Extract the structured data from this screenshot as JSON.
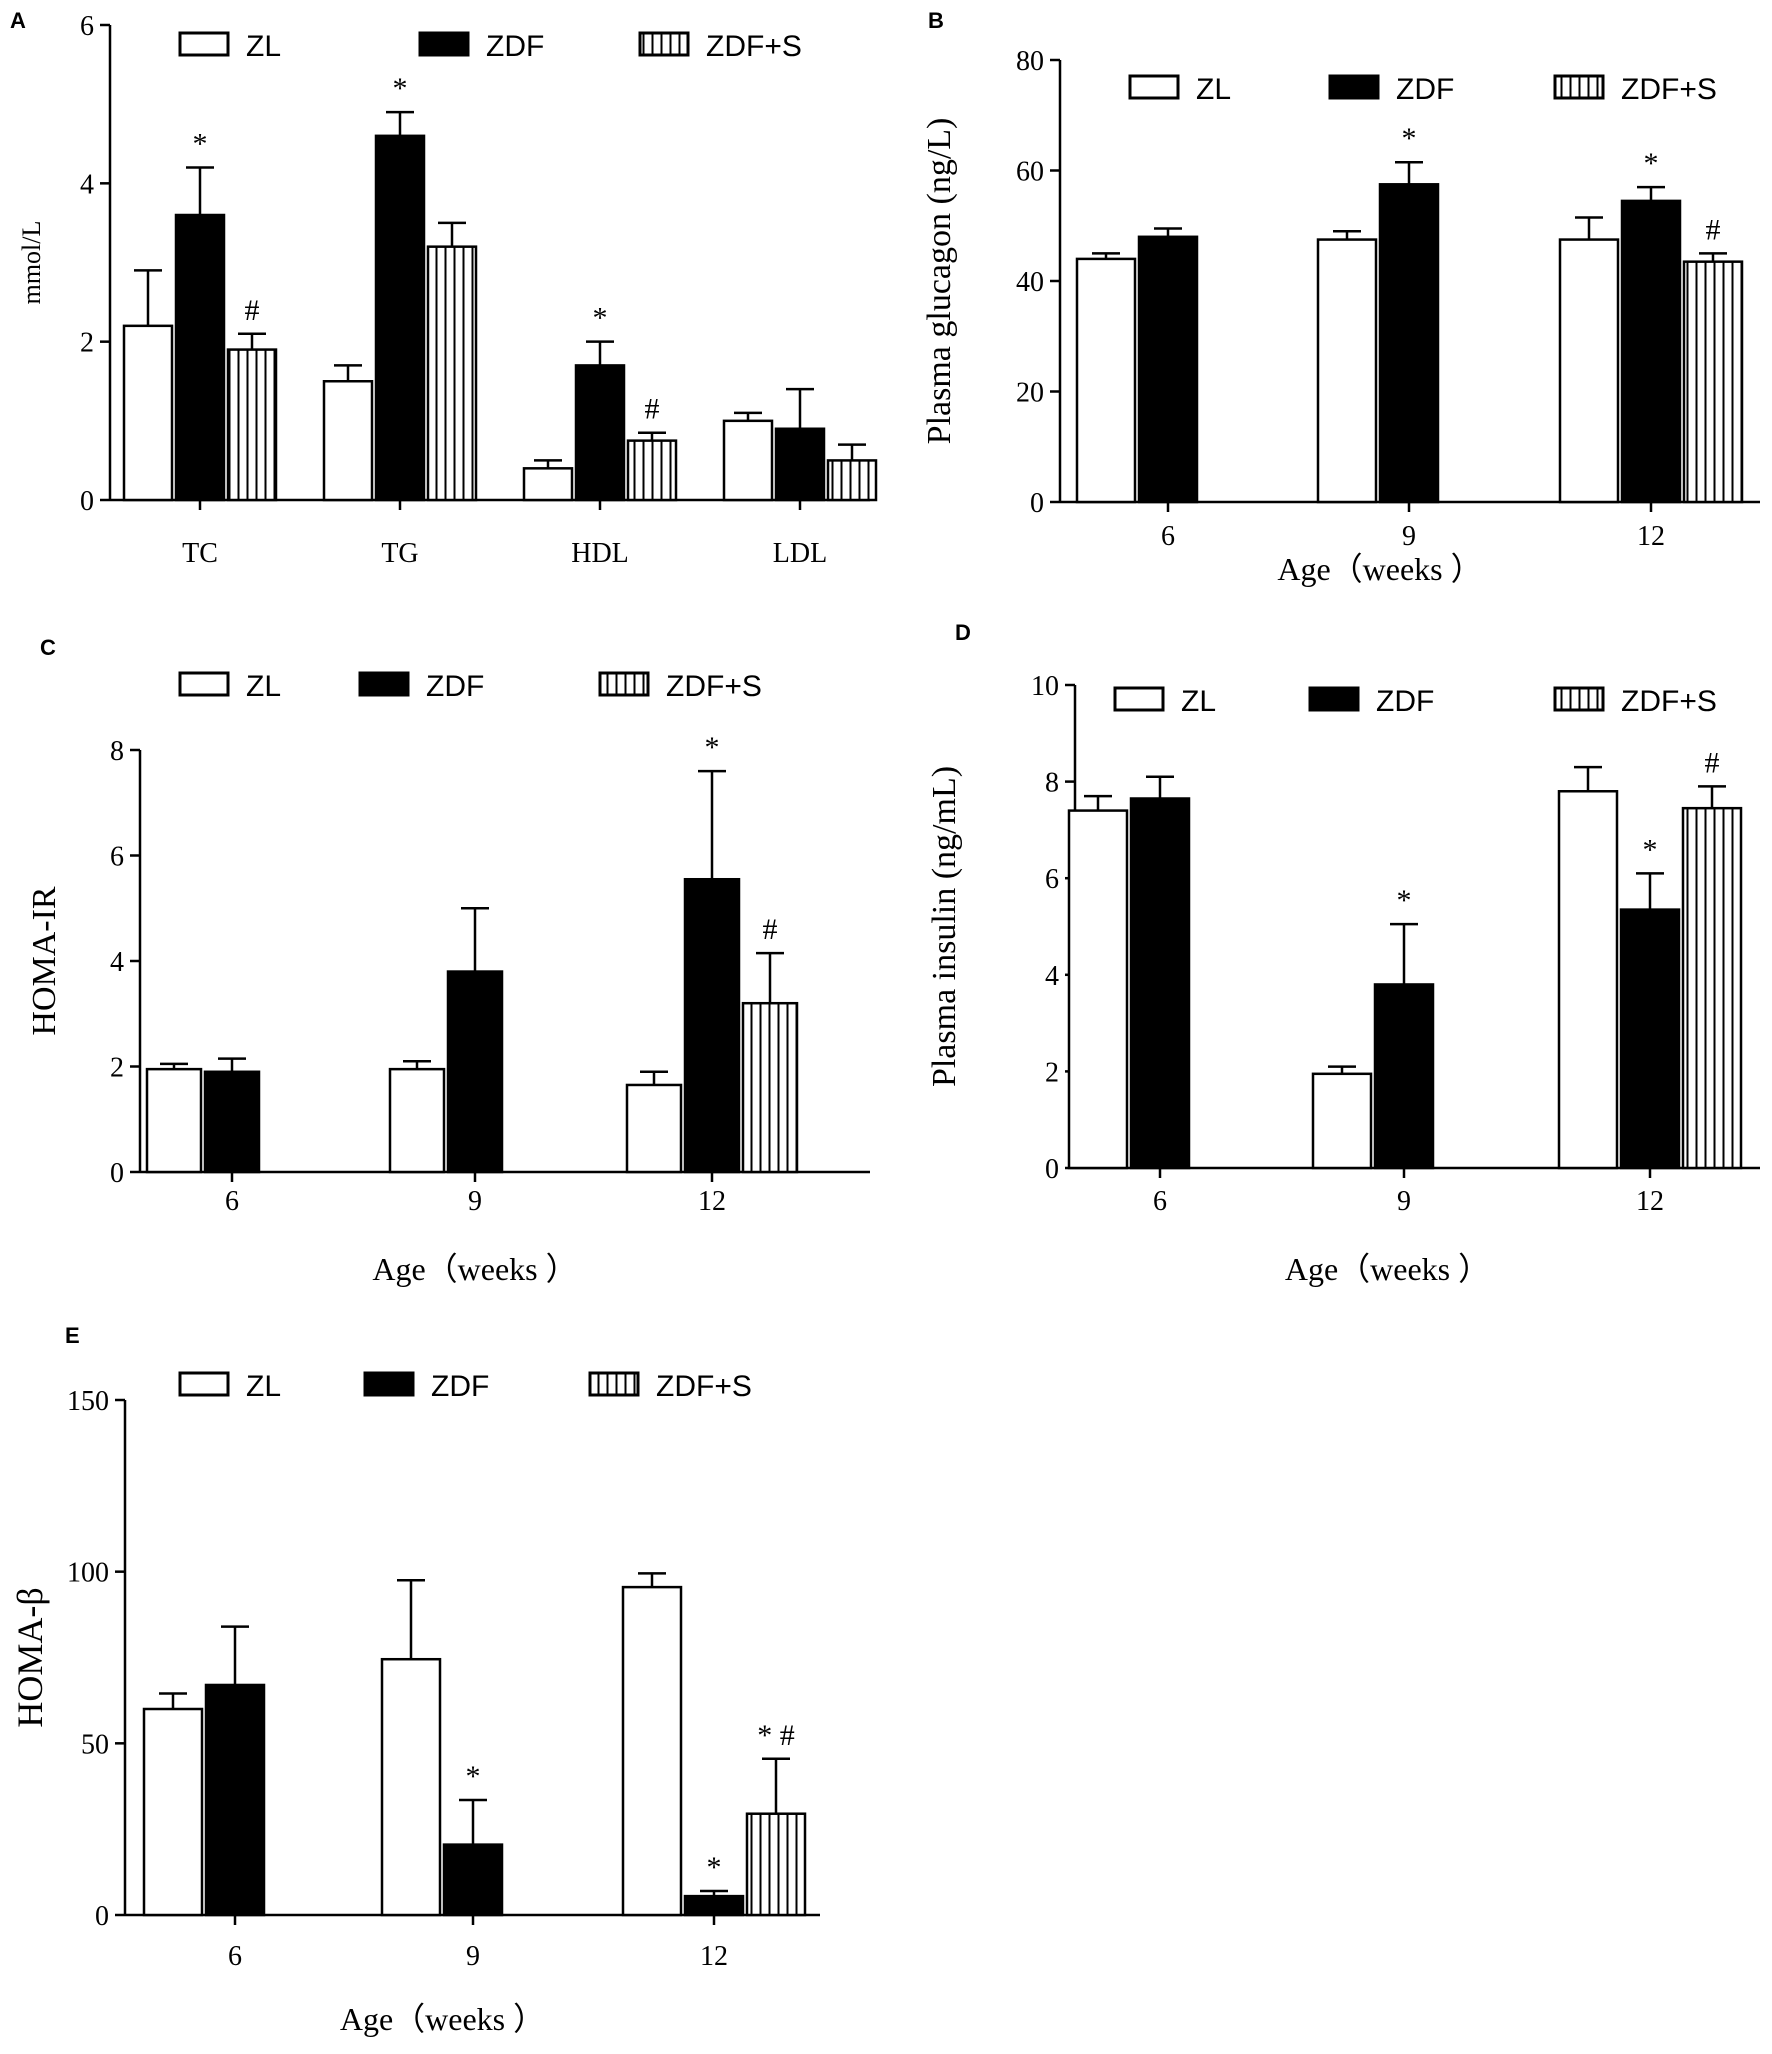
{
  "chart_data": [
    {
      "panel": "A",
      "type": "bar",
      "title": "",
      "xlabel": "",
      "ylabel": "mmol/L",
      "ylim": [
        0,
        6
      ],
      "yticks": [
        0,
        2,
        4,
        6
      ],
      "categories": [
        "TC",
        "TG",
        "HDL",
        "LDL"
      ],
      "legend": [
        "ZL",
        "ZDF",
        "ZDF+S"
      ],
      "series": [
        {
          "name": "ZL",
          "values": [
            2.2,
            1.5,
            0.4,
            1.0
          ],
          "errors": [
            0.7,
            0.2,
            0.1,
            0.1
          ]
        },
        {
          "name": "ZDF",
          "values": [
            3.6,
            4.6,
            1.7,
            0.9
          ],
          "errors": [
            0.6,
            0.3,
            0.3,
            0.5
          ]
        },
        {
          "name": "ZDF+S",
          "values": [
            1.9,
            3.2,
            0.75,
            0.5
          ],
          "errors": [
            0.2,
            0.3,
            0.1,
            0.2
          ]
        }
      ],
      "annotations": [
        {
          "category": 0,
          "series": 1,
          "text": "*"
        },
        {
          "category": 0,
          "series": 2,
          "text": "#"
        },
        {
          "category": 1,
          "series": 1,
          "text": "*"
        },
        {
          "category": 2,
          "series": 1,
          "text": "*"
        },
        {
          "category": 2,
          "series": 2,
          "text": "#"
        }
      ]
    },
    {
      "panel": "B",
      "type": "bar",
      "title": "",
      "xlabel": "Age（weeks ）",
      "ylabel": "Plasma glucagon (ng/L)",
      "ylim": [
        0,
        80
      ],
      "yticks": [
        0,
        20,
        40,
        60,
        80
      ],
      "categories": [
        "6",
        "9",
        "12"
      ],
      "legend": [
        "ZL",
        "ZDF",
        "ZDF+S"
      ],
      "series": [
        {
          "name": "ZL",
          "values": [
            44,
            47.5,
            47.5
          ],
          "errors": [
            1,
            1.5,
            4
          ]
        },
        {
          "name": "ZDF",
          "values": [
            48,
            57.5,
            54.5
          ],
          "errors": [
            1.5,
            4,
            2.5
          ]
        },
        {
          "name": "ZDF+S",
          "values": [
            null,
            null,
            43.5
          ],
          "errors": [
            null,
            null,
            1.5
          ]
        }
      ],
      "annotations": [
        {
          "category": 1,
          "series": 1,
          "text": "*"
        },
        {
          "category": 2,
          "series": 1,
          "text": "*"
        },
        {
          "category": 2,
          "series": 2,
          "text": "#"
        }
      ]
    },
    {
      "panel": "C",
      "type": "bar",
      "title": "",
      "xlabel": "Age（weeks ）",
      "ylabel": "HOMA-IR",
      "ylim": [
        0,
        8
      ],
      "yticks": [
        0,
        2,
        4,
        6,
        8
      ],
      "categories": [
        "6",
        "9",
        "12"
      ],
      "legend": [
        "ZL",
        "ZDF",
        "ZDF+S"
      ],
      "series": [
        {
          "name": "ZL",
          "values": [
            1.95,
            1.95,
            1.65
          ],
          "errors": [
            0.1,
            0.15,
            0.25
          ]
        },
        {
          "name": "ZDF",
          "values": [
            1.9,
            3.8,
            5.55
          ],
          "errors": [
            0.25,
            1.2,
            2.05
          ]
        },
        {
          "name": "ZDF+S",
          "values": [
            null,
            null,
            3.2
          ],
          "errors": [
            null,
            null,
            0.95
          ]
        }
      ],
      "annotations": [
        {
          "category": 2,
          "series": 1,
          "text": "*"
        },
        {
          "category": 2,
          "series": 2,
          "text": "#"
        }
      ]
    },
    {
      "panel": "D",
      "type": "bar",
      "title": "",
      "xlabel": "Age（weeks ）",
      "ylabel": "Plasma insulin (ng/mL)",
      "ylim": [
        0,
        10
      ],
      "yticks": [
        0,
        2,
        4,
        6,
        8,
        10
      ],
      "categories": [
        "6",
        "9",
        "12"
      ],
      "legend": [
        "ZL",
        "ZDF",
        "ZDF+S"
      ],
      "series": [
        {
          "name": "ZL",
          "values": [
            7.4,
            1.95,
            7.8
          ],
          "errors": [
            0.3,
            0.15,
            0.5
          ]
        },
        {
          "name": "ZDF",
          "values": [
            7.65,
            3.8,
            5.35
          ],
          "errors": [
            0.45,
            1.25,
            0.75
          ]
        },
        {
          "name": "ZDF+S",
          "values": [
            null,
            null,
            7.45
          ],
          "errors": [
            null,
            null,
            0.45
          ]
        }
      ],
      "annotations": [
        {
          "category": 1,
          "series": 1,
          "text": "*"
        },
        {
          "category": 2,
          "series": 1,
          "text": "*"
        },
        {
          "category": 2,
          "series": 2,
          "text": "#"
        }
      ]
    },
    {
      "panel": "E",
      "type": "bar",
      "title": "",
      "xlabel": "Age（weeks ）",
      "ylabel": "HOMA-β",
      "ylim": [
        0,
        150
      ],
      "yticks": [
        0,
        50,
        100,
        150
      ],
      "categories": [
        "6",
        "9",
        "12"
      ],
      "legend": [
        "ZL",
        "ZDF",
        "ZDF+S"
      ],
      "series": [
        {
          "name": "ZL",
          "values": [
            60,
            74.5,
            95.5
          ],
          "errors": [
            4.5,
            23,
            4
          ]
        },
        {
          "name": "ZDF",
          "values": [
            67,
            20.5,
            5.5
          ],
          "errors": [
            17,
            13,
            1.5
          ]
        },
        {
          "name": "ZDF+S",
          "values": [
            null,
            null,
            29.5
          ],
          "errors": [
            null,
            null,
            16
          ]
        }
      ],
      "annotations": [
        {
          "category": 1,
          "series": 1,
          "text": "*"
        },
        {
          "category": 2,
          "series": 1,
          "text": "*"
        },
        {
          "category": 2,
          "series": 2,
          "text": "* #"
        }
      ]
    }
  ],
  "colors": {
    "ZL": "#ffffff",
    "ZDF": "#000000",
    "ZDF+S": "#ffffff",
    "stroke": "#000000"
  }
}
